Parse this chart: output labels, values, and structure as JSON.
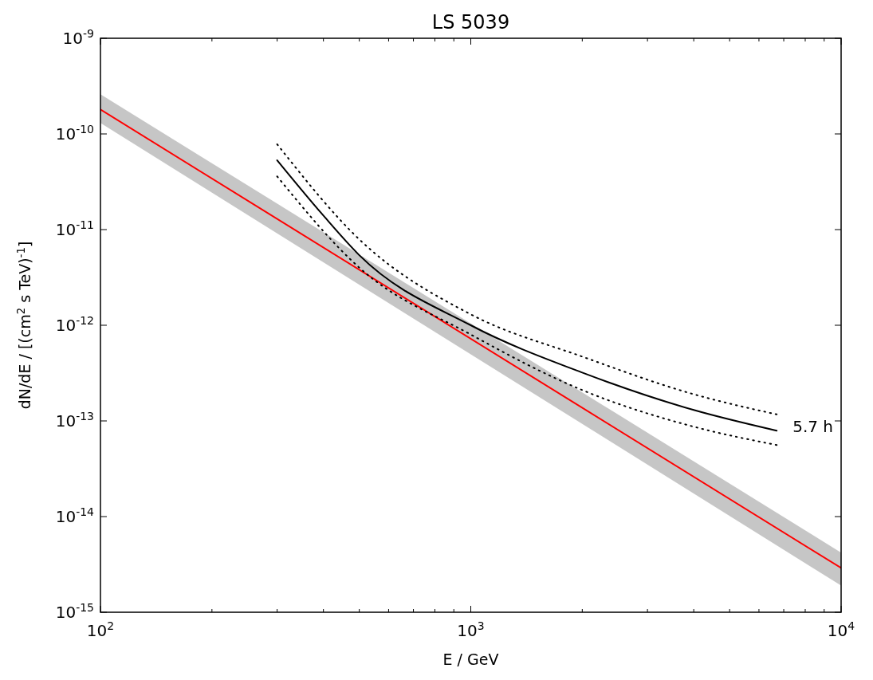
{
  "chart_data": {
    "type": "line",
    "title": "LS 5039",
    "xlabel": "E / GeV",
    "ylabel": "dN/dE / [(cm$^{2}$ s TeV)$^{-1}$]",
    "log": "xy",
    "grid": false,
    "marker": "none",
    "xlim": [
      100,
      10000
    ],
    "ylim": [
      1e-15,
      1e-09
    ],
    "xticks": [
      {
        "value": 100,
        "label": "10$^{2}$"
      },
      {
        "value": 200,
        "label": null
      },
      {
        "value": 300,
        "label": null
      },
      {
        "value": 400,
        "label": null
      },
      {
        "value": 500,
        "label": null
      },
      {
        "value": 600,
        "label": null
      },
      {
        "value": 700,
        "label": null
      },
      {
        "value": 800,
        "label": null
      },
      {
        "value": 900,
        "label": null
      },
      {
        "value": 1000,
        "label": "10$^{3}$"
      },
      {
        "value": 2000,
        "label": null
      },
      {
        "value": 3000,
        "label": null
      },
      {
        "value": 4000,
        "label": null
      },
      {
        "value": 5000,
        "label": null
      },
      {
        "value": 6000,
        "label": null
      },
      {
        "value": 7000,
        "label": null
      },
      {
        "value": 8000,
        "label": null
      },
      {
        "value": 9000,
        "label": null
      },
      {
        "value": 10000,
        "label": "10$^{4}$"
      }
    ],
    "yticks": [
      {
        "value": 1e-15,
        "label": "10$^{-15}$"
      },
      {
        "value": 1e-14,
        "label": "10$^{-14}$"
      },
      {
        "value": 1e-13,
        "label": "10$^{-13}$"
      },
      {
        "value": 1e-12,
        "label": "10$^{-12}$"
      },
      {
        "value": 1e-11,
        "label": "10$^{-11}$"
      },
      {
        "value": 1e-10,
        "label": "10$^{-10}$"
      },
      {
        "value": 1e-09,
        "label": "10$^{-9}$"
      }
    ],
    "series": [
      {
        "color": "#ff0000",
        "line_style": "solid",
        "x": [
          100,
          10000
        ],
        "values": [
          1.8e-10,
          2.9e-15
        ],
        "lower": [
          1.3e-10,
          1.9e-15
        ],
        "upper": [
          2.6e-10,
          4.2e-15
        ]
      },
      {
        "color": "#000000",
        "line_style": "solid",
        "x": [
          300,
          400,
          500,
          1000,
          2000,
          4000,
          6700
        ],
        "values": [
          5.3e-11,
          1.4e-11,
          5.4e-12,
          1e-12,
          3.2e-13,
          1.3e-13,
          7.9e-14
        ]
      },
      {
        "color": "#000000",
        "line_style": "dotted",
        "x": [
          300,
          500,
          1000,
          2000,
          4000,
          6700
        ],
        "values": [
          7.8e-11,
          7.9e-12,
          1.3e-12,
          4.7e-13,
          1.9e-13,
          1.17e-13
        ]
      },
      {
        "color": "#000000",
        "line_style": "dotted",
        "x": [
          300,
          500,
          1000,
          2000,
          4000,
          6700
        ],
        "values": [
          3.6e-11,
          4e-12,
          8e-13,
          2.1e-13,
          8.7e-14,
          5.6e-14
        ]
      }
    ],
    "annotations": [
      "5.7 h"
    ]
  }
}
